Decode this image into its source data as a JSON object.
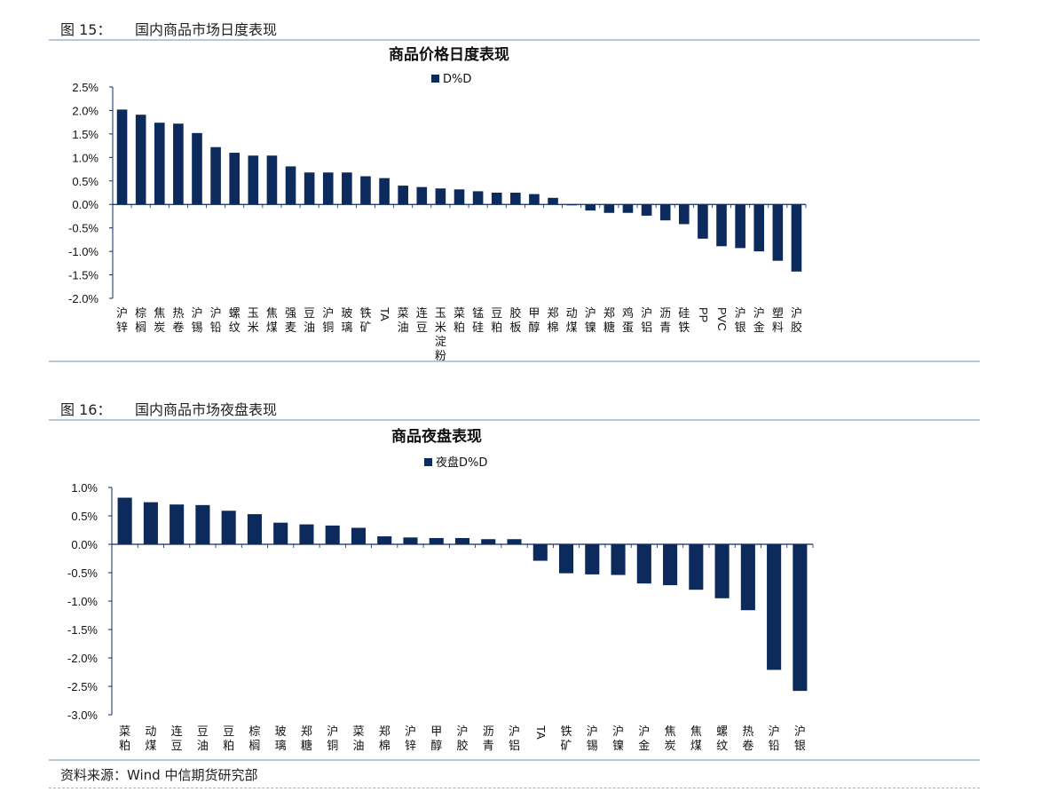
{
  "figures": [
    {
      "label": "图 15：",
      "title": "国内商品市场日度表现"
    },
    {
      "label": "图 16：",
      "title": "国内商品市场夜盘表现"
    }
  ],
  "source": "资料来源：Wind  中信期货研究部",
  "colors": {
    "bar": "#0d2a5c",
    "rule": "#b8c7d9",
    "axis": "#0d2a5c"
  },
  "chart_data": [
    {
      "type": "bar",
      "title": "商品价格日度表现",
      "legend": "D%D",
      "legend_position": "top-center",
      "ylim": [
        -2.0,
        2.5
      ],
      "ytick_step": 0.5,
      "ytick_labels": [
        "2.5%",
        "2.0%",
        "1.5%",
        "1.0%",
        "0.5%",
        "0.0%",
        "-0.5%",
        "-1.0%",
        "-1.5%",
        "-2.0%"
      ],
      "categories": [
        "沪锌",
        "棕榈",
        "焦炭",
        "热卷",
        "沪锡",
        "沪铅",
        "螺纹",
        "玉米",
        "焦煤",
        "强麦",
        "豆油",
        "沪铜",
        "玻璃",
        "铁矿",
        "TA",
        "菜油",
        "连豆",
        "玉米淀粉",
        "菜粕",
        "锰硅",
        "豆粕",
        "胶板",
        "甲醇",
        "郑棉",
        "动煤",
        "沪镍",
        "郑糖",
        "鸡蛋",
        "沪铝",
        "沥青",
        "硅铁",
        "PP",
        "PVC",
        "沪银",
        "沪金",
        "塑料",
        "沪胶"
      ],
      "values": [
        2.02,
        1.91,
        1.74,
        1.72,
        1.52,
        1.22,
        1.1,
        1.04,
        1.04,
        0.81,
        0.68,
        0.68,
        0.68,
        0.6,
        0.56,
        0.4,
        0.37,
        0.34,
        0.32,
        0.28,
        0.25,
        0.25,
        0.22,
        0.14,
        -0.02,
        -0.13,
        -0.18,
        -0.18,
        -0.24,
        -0.34,
        -0.42,
        -0.73,
        -0.89,
        -0.93,
        -1.0,
        -1.2,
        -1.43
      ]
    },
    {
      "type": "bar",
      "title": "商品夜盘表现",
      "legend": "夜盘D%D",
      "legend_position": "top-center",
      "ylim": [
        -3.0,
        1.0
      ],
      "ytick_step": 0.5,
      "ytick_labels": [
        "1.0%",
        "0.5%",
        "0.0%",
        "-0.5%",
        "-1.0%",
        "-1.5%",
        "-2.0%",
        "-2.5%",
        "-3.0%"
      ],
      "categories": [
        "菜粕",
        "动煤",
        "连豆",
        "豆油",
        "豆粕",
        "棕榈",
        "玻璃",
        "郑糖",
        "沪铜",
        "菜油",
        "郑棉",
        "沪锌",
        "甲醇",
        "沪胶",
        "沥青",
        "沪铝",
        "TA",
        "铁矿",
        "沪锡",
        "沪镍",
        "沪金",
        "焦炭",
        "焦煤",
        "螺纹",
        "热卷",
        "沪铅",
        "沪银"
      ],
      "values": [
        0.82,
        0.74,
        0.7,
        0.69,
        0.59,
        0.53,
        0.38,
        0.35,
        0.33,
        0.29,
        0.14,
        0.12,
        0.11,
        0.11,
        0.09,
        0.09,
        -0.29,
        -0.51,
        -0.53,
        -0.54,
        -0.69,
        -0.72,
        -0.8,
        -0.95,
        -1.16,
        -2.21,
        -2.58
      ]
    }
  ]
}
